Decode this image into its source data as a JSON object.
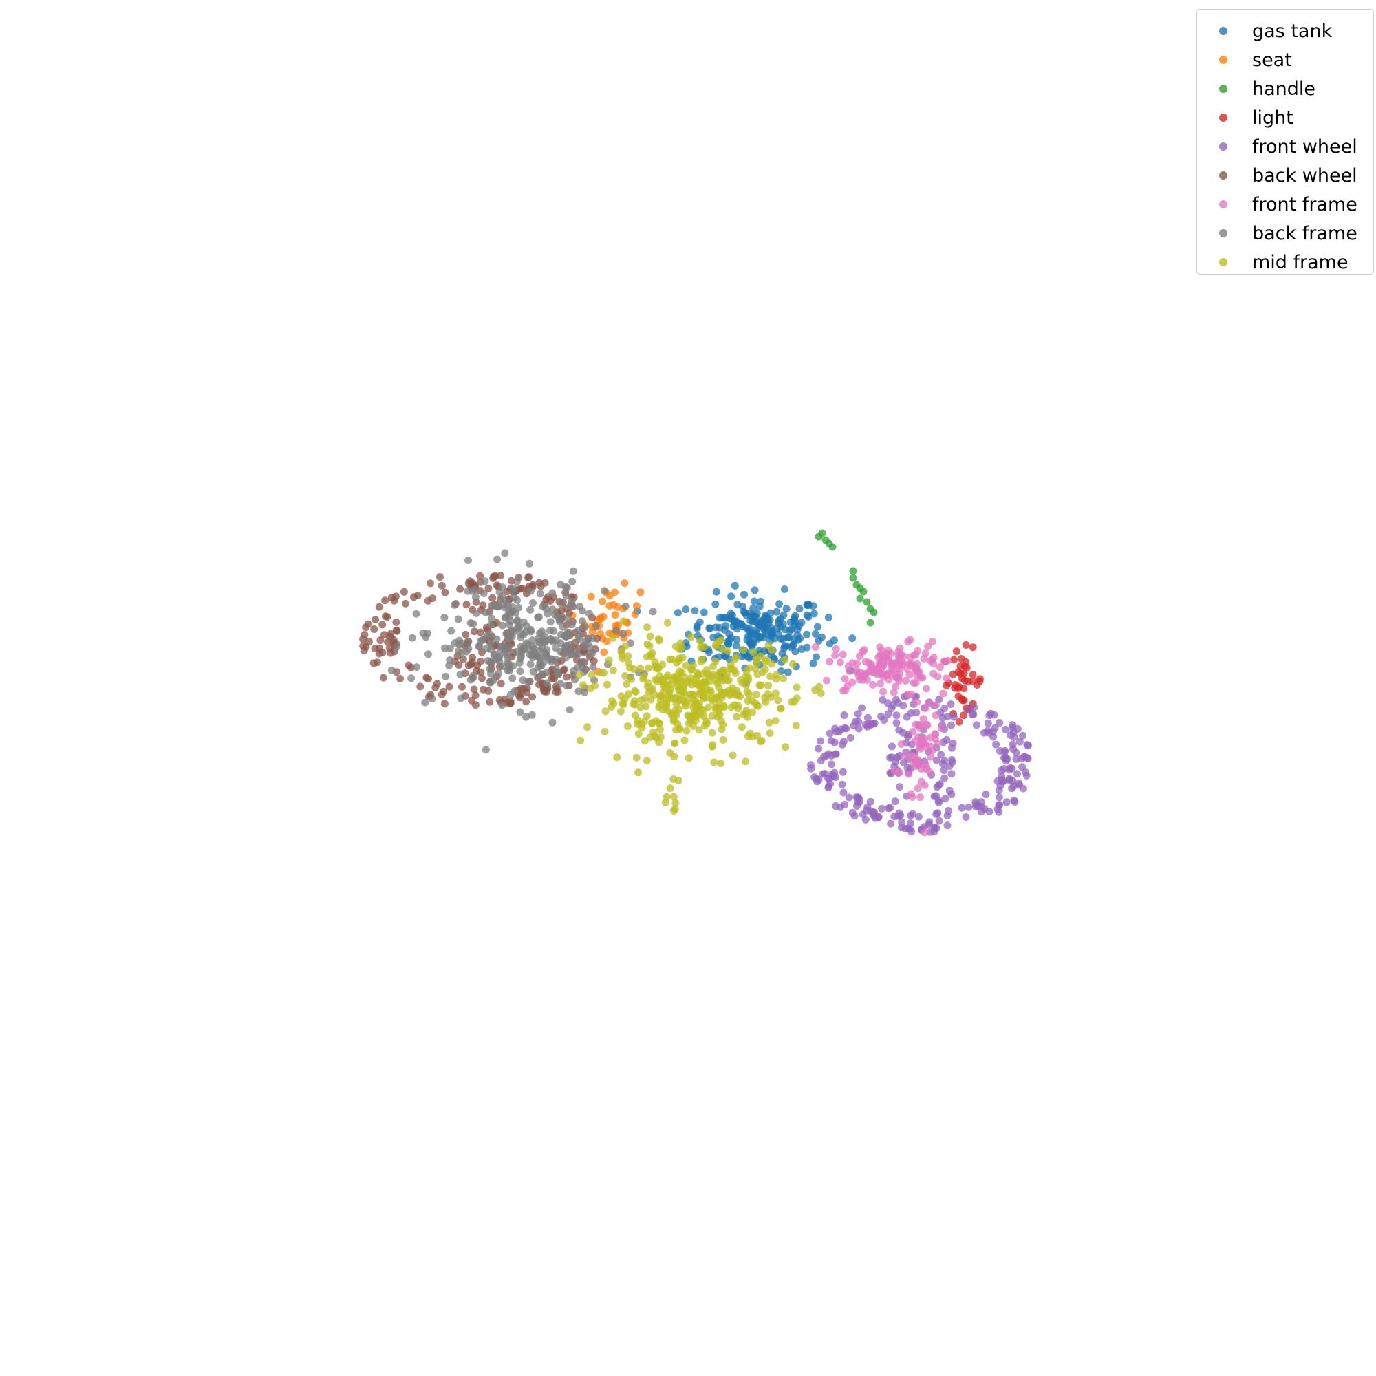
{
  "chart_data": {
    "type": "scatter",
    "title": "",
    "xlabel": "",
    "ylabel": "",
    "axes_visible": false,
    "grid": false,
    "legend_placement": "top-right",
    "xlim": [
      -1,
      1
    ],
    "ylim": [
      -1,
      1
    ],
    "series": [
      {
        "name": "gas tank",
        "color": "#1f77b4",
        "clusters": [
          {
            "cx": 0.1,
            "cy": 0.08,
            "rx": 0.1,
            "ry": 0.055,
            "n": 230,
            "shape": "blob"
          }
        ]
      },
      {
        "name": "seat",
        "color": "#ff7f0e",
        "clusters": [
          {
            "cx": -0.11,
            "cy": 0.1,
            "rx": 0.04,
            "ry": 0.045,
            "n": 40,
            "shape": "blob"
          }
        ]
      },
      {
        "name": "handle",
        "color": "#2ca02c",
        "points": [
          [
            0.19,
            0.22
          ],
          [
            0.195,
            0.225
          ],
          [
            0.2,
            0.215
          ],
          [
            0.205,
            0.21
          ],
          [
            0.21,
            0.205
          ],
          [
            0.24,
            0.17
          ],
          [
            0.24,
            0.16
          ],
          [
            0.245,
            0.15
          ],
          [
            0.25,
            0.145
          ],
          [
            0.255,
            0.14
          ],
          [
            0.25,
            0.13
          ],
          [
            0.26,
            0.125
          ],
          [
            0.265,
            0.115
          ],
          [
            0.27,
            0.11
          ],
          [
            0.265,
            0.095
          ]
        ]
      },
      {
        "name": "light",
        "color": "#d62728",
        "clusters": [
          {
            "cx": 0.4,
            "cy": 0.01,
            "rx": 0.03,
            "ry": 0.045,
            "n": 40,
            "shape": "blob"
          }
        ]
      },
      {
        "name": "front wheel",
        "color": "#9467bd",
        "clusters": [
          {
            "cx": 0.34,
            "cy": -0.11,
            "rx": 0.155,
            "ry": 0.095,
            "n": 300,
            "shape": "ring"
          }
        ]
      },
      {
        "name": "back wheel",
        "color": "#8c564b",
        "clusters": [
          {
            "cx": -0.3,
            "cy": 0.07,
            "rx": 0.165,
            "ry": 0.095,
            "n": 260,
            "shape": "ring"
          }
        ]
      },
      {
        "name": "front frame",
        "color": "#e377c2",
        "clusters": [
          {
            "cx": 0.29,
            "cy": 0.03,
            "rx": 0.08,
            "ry": 0.035,
            "n": 140,
            "shape": "blob"
          },
          {
            "cx": 0.34,
            "cy": -0.09,
            "rx": 0.025,
            "ry": 0.08,
            "n": 60,
            "shape": "blob"
          }
        ]
      },
      {
        "name": "back frame",
        "color": "#7f7f7f",
        "clusters": [
          {
            "cx": -0.24,
            "cy": 0.07,
            "rx": 0.13,
            "ry": 0.085,
            "n": 300,
            "shape": "blob"
          }
        ]
      },
      {
        "name": "mid frame",
        "color": "#bcbd22",
        "clusters": [
          {
            "cx": 0.01,
            "cy": -0.01,
            "rx": 0.14,
            "ry": 0.075,
            "n": 420,
            "shape": "blob"
          },
          {
            "cx": -0.02,
            "cy": -0.15,
            "rx": 0.01,
            "ry": 0.03,
            "n": 8,
            "shape": "blob"
          }
        ]
      }
    ]
  }
}
